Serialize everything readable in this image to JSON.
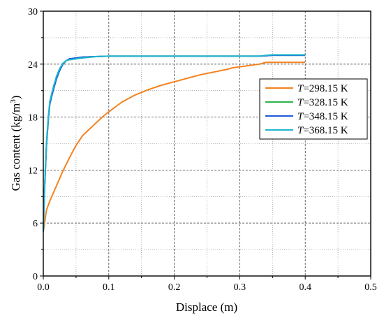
{
  "chart_data": {
    "type": "line",
    "xlabel": "Displace (m)",
    "ylabel": {
      "main": "Gas content (kg/m",
      "sup": "3",
      "tail": ")"
    },
    "xlim": [
      0.0,
      0.5
    ],
    "ylim": [
      0,
      30
    ],
    "xticks": [
      "0.0",
      "0.1",
      "0.2",
      "0.3",
      "0.4",
      "0.5"
    ],
    "xtick_values": [
      0.0,
      0.1,
      0.2,
      0.3,
      0.4,
      0.5
    ],
    "yticks": [
      "0",
      "6",
      "12",
      "18",
      "24",
      "30"
    ],
    "ytick_values": [
      0,
      6,
      12,
      18,
      24,
      30
    ],
    "grid": true,
    "legend_position": "right",
    "series": [
      {
        "name": "298.15 K",
        "var": "T",
        "color": "#f5821f",
        "x": [
          0.0,
          0.005,
          0.01,
          0.02,
          0.03,
          0.04,
          0.05,
          0.06,
          0.07,
          0.08,
          0.09,
          0.1,
          0.12,
          0.14,
          0.16,
          0.18,
          0.2,
          0.22,
          0.24,
          0.26,
          0.28,
          0.29,
          0.3,
          0.31,
          0.32,
          0.33,
          0.34,
          0.4
        ],
        "y": [
          5.0,
          7.5,
          8.5,
          10.2,
          11.9,
          13.4,
          14.8,
          15.9,
          16.6,
          17.3,
          18.0,
          18.6,
          19.7,
          20.5,
          21.1,
          21.6,
          22.0,
          22.4,
          22.8,
          23.1,
          23.4,
          23.6,
          23.7,
          23.8,
          23.9,
          24.0,
          24.2,
          24.2
        ]
      },
      {
        "name": "328.15 K",
        "var": "T",
        "color": "#2db24a",
        "x": [
          0.0,
          0.002,
          0.005,
          0.008,
          0.01,
          0.015,
          0.02,
          0.025,
          0.03,
          0.035,
          0.04,
          0.05,
          0.06,
          0.08,
          0.1,
          0.15,
          0.2,
          0.25,
          0.3,
          0.33,
          0.34,
          0.35,
          0.4
        ],
        "y": [
          5.0,
          10.0,
          15.0,
          18.0,
          19.5,
          21.0,
          22.3,
          23.3,
          24.0,
          24.4,
          24.6,
          24.7,
          24.8,
          24.85,
          24.9,
          24.9,
          24.9,
          24.9,
          24.9,
          24.9,
          24.95,
          25.0,
          25.0
        ]
      },
      {
        "name": "348.15 K",
        "var": "T",
        "color": "#1f5bd6",
        "x": [
          0.0,
          0.002,
          0.005,
          0.008,
          0.01,
          0.015,
          0.02,
          0.025,
          0.03,
          0.035,
          0.04,
          0.05,
          0.06,
          0.08,
          0.1,
          0.15,
          0.2,
          0.25,
          0.3,
          0.33,
          0.34,
          0.35,
          0.4
        ],
        "y": [
          5.0,
          10.0,
          15.0,
          18.0,
          19.5,
          21.0,
          22.3,
          23.3,
          24.0,
          24.4,
          24.6,
          24.7,
          24.8,
          24.85,
          24.9,
          24.9,
          24.9,
          24.9,
          24.9,
          24.9,
          24.95,
          25.0,
          25.0
        ]
      },
      {
        "name": "368.15 K",
        "var": "T",
        "color": "#1fb5cf",
        "x": [
          0.0,
          0.002,
          0.005,
          0.008,
          0.01,
          0.015,
          0.02,
          0.025,
          0.03,
          0.035,
          0.04,
          0.05,
          0.06,
          0.08,
          0.1,
          0.15,
          0.2,
          0.25,
          0.3,
          0.33,
          0.34,
          0.35,
          0.4
        ],
        "y": [
          5.0,
          10.2,
          15.3,
          18.3,
          19.8,
          21.3,
          22.6,
          23.5,
          24.1,
          24.4,
          24.5,
          24.6,
          24.7,
          24.85,
          24.9,
          24.9,
          24.9,
          24.9,
          24.9,
          24.9,
          25.0,
          25.05,
          25.05
        ]
      }
    ]
  }
}
